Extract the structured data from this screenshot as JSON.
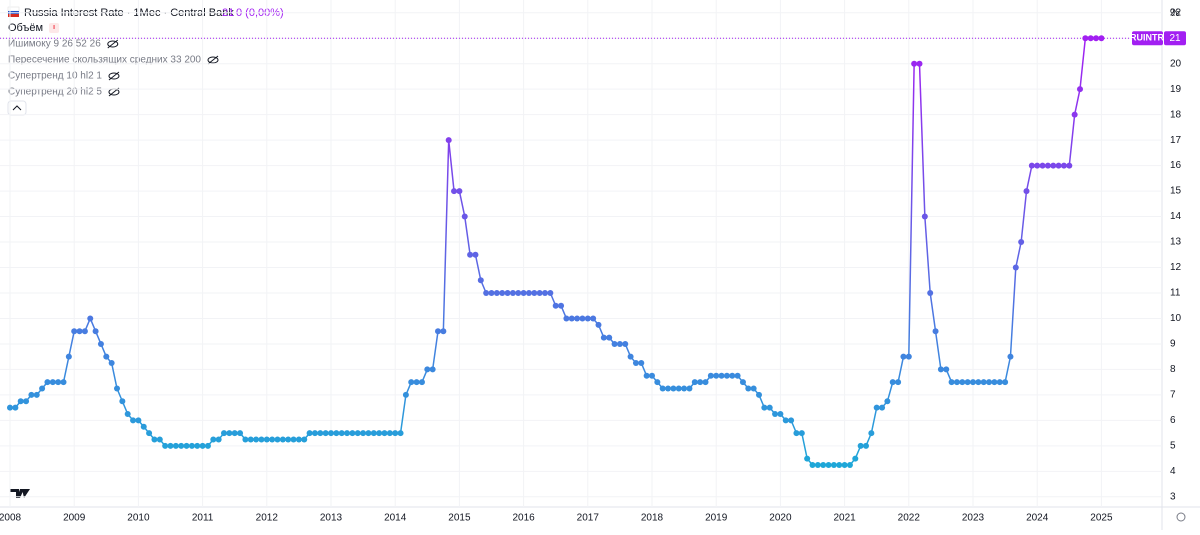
{
  "chart_data": {
    "type": "line",
    "title": "Russia Interest Rate · 1Мес · Central Bank",
    "last_label": "21",
    "change": "0 (0,00%)",
    "symbol": "RUINTR",
    "y_unit": "%",
    "indicators": [
      "Объём",
      "Ишимоку 9 26 52 26",
      "Пересечение скользящих средних 33 200",
      "Супертренд 10 hl2 1",
      "Супертренд 20 hl2 5"
    ],
    "categories": [
      "2008",
      null,
      null,
      null,
      null,
      null,
      null,
      null,
      null,
      null,
      null,
      null,
      "2009",
      null,
      null,
      null,
      null,
      null,
      null,
      null,
      null,
      null,
      null,
      null,
      "2010",
      null,
      null,
      null,
      null,
      null,
      null,
      null,
      null,
      null,
      null,
      null,
      "2011",
      null,
      null,
      null,
      null,
      null,
      null,
      null,
      null,
      null,
      null,
      null,
      "2012",
      null,
      null,
      null,
      null,
      null,
      null,
      null,
      null,
      null,
      null,
      null,
      "2013",
      null,
      null,
      null,
      null,
      null,
      null,
      null,
      null,
      null,
      null,
      null,
      "2014",
      null,
      null,
      null,
      null,
      null,
      null,
      null,
      null,
      null,
      null,
      null,
      "2015",
      null,
      null,
      null,
      null,
      null,
      null,
      null,
      null,
      null,
      null,
      null,
      "2016",
      null,
      null,
      null,
      null,
      null,
      null,
      null,
      null,
      null,
      null,
      null,
      "2017",
      null,
      null,
      null,
      null,
      null,
      null,
      null,
      null,
      null,
      null,
      null,
      "2018",
      null,
      null,
      null,
      null,
      null,
      null,
      null,
      null,
      null,
      null,
      null,
      "2019",
      null,
      null,
      null,
      null,
      null,
      null,
      null,
      null,
      null,
      null,
      null,
      "2020",
      null,
      null,
      null,
      null,
      null,
      null,
      null,
      null,
      null,
      null,
      null,
      "2021",
      null,
      null,
      null,
      null,
      null,
      null,
      null,
      null,
      null,
      null,
      null,
      "2022",
      null,
      null,
      null,
      null,
      null,
      null,
      null,
      null,
      null,
      null,
      null,
      "2023",
      null,
      null,
      null,
      null,
      null,
      null,
      null,
      null,
      null,
      null,
      null,
      "2024",
      null,
      null,
      null,
      null,
      null,
      null,
      null,
      null,
      null,
      null,
      null,
      "2025"
    ],
    "values": [
      6.5,
      6.5,
      6.75,
      6.75,
      7,
      7,
      7.25,
      7.5,
      7.5,
      7.5,
      7.5,
      8.5,
      9.5,
      9.5,
      9.5,
      10,
      9.5,
      9,
      8.5,
      8.25,
      7.25,
      6.75,
      6.25,
      6,
      6,
      5.75,
      5.5,
      5.25,
      5.25,
      5,
      5,
      5,
      5,
      5,
      5,
      5,
      5,
      5,
      5.25,
      5.25,
      5.5,
      5.5,
      5.5,
      5.5,
      5.25,
      5.25,
      5.25,
      5.25,
      5.25,
      5.25,
      5.25,
      5.25,
      5.25,
      5.25,
      5.25,
      5.25,
      5.5,
      5.5,
      5.5,
      5.5,
      5.5,
      5.5,
      5.5,
      5.5,
      5.5,
      5.5,
      5.5,
      5.5,
      5.5,
      5.5,
      5.5,
      5.5,
      5.5,
      5.5,
      7,
      7.5,
      7.5,
      7.5,
      8,
      8,
      9.5,
      9.5,
      17,
      15,
      15,
      14,
      12.5,
      12.5,
      11.5,
      11,
      11,
      11,
      11,
      11,
      11,
      11,
      11,
      11,
      11,
      11,
      11,
      11,
      10.5,
      10.5,
      10,
      10,
      10,
      10,
      10,
      10,
      9.75,
      9.25,
      9.25,
      9,
      9,
      9,
      8.5,
      8.25,
      8.25,
      7.75,
      7.75,
      7.5,
      7.25,
      7.25,
      7.25,
      7.25,
      7.25,
      7.25,
      7.5,
      7.5,
      7.5,
      7.75,
      7.75,
      7.75,
      7.75,
      7.75,
      7.75,
      7.5,
      7.25,
      7.25,
      7,
      6.5,
      6.5,
      6.25,
      6.25,
      6,
      6,
      5.5,
      5.5,
      4.5,
      4.25,
      4.25,
      4.25,
      4.25,
      4.25,
      4.25,
      4.25,
      4.25,
      4.5,
      5,
      5,
      5.5,
      6.5,
      6.5,
      6.75,
      7.5,
      7.5,
      8.5,
      8.5,
      20,
      20,
      14,
      11,
      9.5,
      8,
      8,
      7.5,
      7.5,
      7.5,
      7.5,
      7.5,
      7.5,
      7.5,
      7.5,
      7.5,
      7.5,
      7.5,
      8.5,
      12,
      13,
      15,
      16,
      16,
      16,
      16,
      16,
      16,
      16,
      16,
      18,
      19,
      21,
      21,
      21,
      21
    ],
    "ylim": [
      2.6,
      22.5
    ],
    "yticks": [
      3,
      4,
      5,
      6,
      7,
      8,
      9,
      10,
      11,
      12,
      13,
      14,
      15,
      16,
      17,
      18,
      19,
      20,
      21,
      22
    ],
    "color_low": "#1ea7d8",
    "color_high": "#a21ff2",
    "grid": true,
    "price_line": true
  }
}
